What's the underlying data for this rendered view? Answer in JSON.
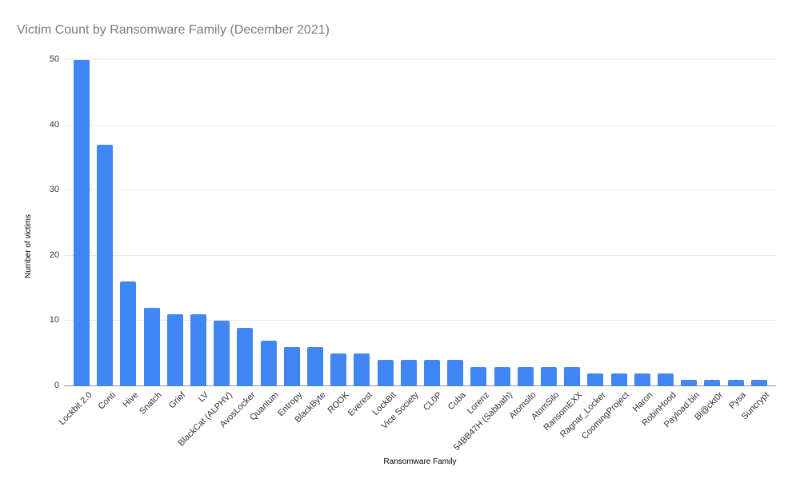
{
  "chart_data": {
    "type": "bar",
    "title": "Victim Count by Ransomware Family (December 2021)",
    "xlabel": "Ransomware Family",
    "ylabel": "Number of victims",
    "categories": [
      "Lockbit 2.0",
      "Conti",
      "Hive",
      "Snatch",
      "Grief",
      "LV",
      "BlackCat (ALPHV)",
      "AvosLocker",
      "Quantum",
      "Entropy",
      "BlackByte",
      "ROOK",
      "Everest",
      "LockBit",
      "Vice Society",
      "CL0P",
      "Cuba",
      "Lorenz",
      "54BB47H (Sabbath)",
      "Atomsilo",
      "AtomSilo",
      "RansomEXX",
      "Ragnar_Locker",
      "CoomingProject",
      "Haron",
      "RobinHood",
      "Payload.bin",
      "Bl@ckt0r",
      "Pysa",
      "Suncrypt"
    ],
    "values": [
      50,
      37,
      16,
      12,
      11,
      11,
      10,
      9,
      7,
      6,
      6,
      5,
      5,
      4,
      4,
      4,
      4,
      3,
      3,
      3,
      3,
      3,
      2,
      2,
      2,
      2,
      1,
      1,
      1,
      1
    ],
    "ylim": [
      0,
      50
    ],
    "yticks": [
      0,
      10,
      20,
      30,
      40,
      50
    ],
    "grid": true,
    "legend": false,
    "bar_color": "#4285F4",
    "gridline_color": "#e8e8e8",
    "baseline_color": "#949494",
    "title_color": "#7b7b7b",
    "tick_label_color": "#333333"
  }
}
